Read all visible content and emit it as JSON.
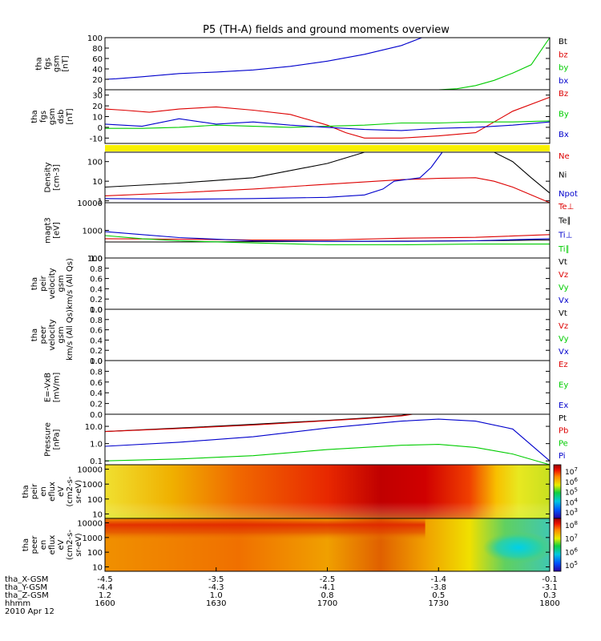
{
  "title": "P5 (TH-A) fields and ground moments overview",
  "chart_data": [
    {
      "type": "line",
      "ylabel_lines": [
        "tha",
        "fgs",
        "gsm",
        "[nT]"
      ],
      "ylim": [
        0,
        100
      ],
      "yticks": [
        0,
        20,
        40,
        60,
        80,
        100
      ],
      "legend": [
        {
          "name": "Bt",
          "color": "#000000"
        },
        {
          "name": "bz",
          "color": "#dd0000"
        },
        {
          "name": "by",
          "color": "#00cc00"
        },
        {
          "name": "bx",
          "color": "#0000cc"
        }
      ],
      "series": [
        {
          "name": "bx",
          "color": "#0000cc",
          "x": [
            1600,
            1603,
            1610,
            1620,
            1630,
            1640,
            1650,
            1700,
            1710,
            1720,
            1725.5
          ],
          "y": [
            20,
            21,
            25,
            31,
            34,
            38,
            45,
            55,
            68,
            85,
            100
          ]
        },
        {
          "name": "by",
          "color": "#00cc00",
          "x": [
            1600,
            1650,
            1730,
            1735,
            1740,
            1745,
            1750,
            1755,
            1800
          ],
          "y": [
            0,
            0,
            0,
            2,
            8,
            18,
            32,
            48,
            100
          ]
        }
      ]
    },
    {
      "type": "line",
      "ylabel_lines": [
        "tha",
        "fgs",
        "gsm",
        "dsb",
        "[nT]"
      ],
      "ylim": [
        -15,
        35
      ],
      "yticks": [
        -10,
        0,
        10,
        20,
        30
      ],
      "legend": [
        {
          "name": "Bz",
          "color": "#dd0000"
        },
        {
          "name": "By",
          "color": "#00cc00"
        },
        {
          "name": "Bx",
          "color": "#0000cc"
        }
      ],
      "series": [
        {
          "name": "Bz",
          "color": "#dd0000",
          "x": [
            1600,
            1605,
            1612,
            1620,
            1630,
            1640,
            1650,
            1700,
            1705,
            1710,
            1720,
            1730,
            1740,
            1745,
            1750,
            1800
          ],
          "y": [
            17,
            16,
            14,
            17,
            19,
            16,
            12,
            2,
            -5,
            -10,
            -10,
            -8,
            -5,
            5,
            15,
            28
          ]
        },
        {
          "name": "By",
          "color": "#00cc00",
          "x": [
            1600,
            1610,
            1620,
            1630,
            1640,
            1650,
            1700,
            1710,
            1720,
            1730,
            1740,
            1750,
            1800
          ],
          "y": [
            -1,
            -1,
            0,
            2,
            1,
            0,
            1,
            2,
            4,
            4,
            5,
            5,
            6
          ]
        },
        {
          "name": "Bx",
          "color": "#0000cc",
          "x": [
            1600,
            1610,
            1620,
            1630,
            1640,
            1650,
            1700,
            1710,
            1720,
            1730,
            1740,
            1750,
            1800
          ],
          "y": [
            3,
            1,
            8,
            3,
            5,
            2,
            0,
            -2,
            -3,
            -1,
            0,
            2,
            5
          ]
        }
      ]
    },
    {
      "type": "line",
      "scale": "log",
      "ylabel_lines": [
        "Density",
        "[cm-3]"
      ],
      "ylim": [
        0.8,
        300
      ],
      "yticks": [
        1,
        10,
        100
      ],
      "legend": [
        {
          "name": "Ne",
          "color": "#dd0000"
        },
        {
          "name": "Ni",
          "color": "#000000"
        },
        {
          "name": "Npot",
          "color": "#0000cc"
        }
      ],
      "series": [
        {
          "name": "Ni",
          "color": "#000000",
          "x": [
            1600,
            1620,
            1640,
            1700,
            1710,
            1745,
            1750,
            1755,
            1800
          ],
          "y": [
            5,
            8,
            15,
            80,
            300,
            300,
            100,
            15,
            2.5
          ]
        },
        {
          "name": "Ne",
          "color": "#dd0000",
          "x": [
            1600,
            1620,
            1640,
            1700,
            1720,
            1730,
            1740,
            1745,
            1750,
            1800
          ],
          "y": [
            1.8,
            2.6,
            4,
            7,
            12,
            14,
            15,
            10,
            5,
            0.8
          ]
        },
        {
          "name": "Npot",
          "color": "#0000cc",
          "x": [
            1600,
            1620,
            1640,
            1700,
            1710,
            1715,
            1718,
            1725,
            1728,
            1731
          ],
          "y": [
            1.3,
            1.2,
            1.3,
            1.5,
            2,
            4,
            10,
            15,
            50,
            300
          ]
        }
      ]
    },
    {
      "type": "line",
      "scale": "log",
      "ylabel_lines": [
        "magt3",
        "[eV]"
      ],
      "ylim": [
        100,
        10000
      ],
      "yticks": [
        100,
        1000,
        10000
      ],
      "legend": [
        {
          "name": "Te⊥",
          "color": "#dd0000"
        },
        {
          "name": "Te∥",
          "color": "#000000"
        },
        {
          "name": "Ti⊥",
          "color": "#0000cc"
        },
        {
          "name": "Ti∥",
          "color": "#00cc00"
        }
      ],
      "series": [
        {
          "name": "Te⊥",
          "color": "#dd0000",
          "x": [
            1600,
            1620,
            1640,
            1700,
            1720,
            1740,
            1800
          ],
          "y": [
            500,
            480,
            450,
            450,
            520,
            560,
            700
          ]
        },
        {
          "name": "Te∥",
          "color": "#000000",
          "x": [
            1600,
            1620,
            1640,
            1700,
            1720,
            1740,
            1800
          ],
          "y": [
            380,
            380,
            390,
            400,
            410,
            420,
            450
          ]
        },
        {
          "name": "Ti⊥",
          "color": "#0000cc",
          "x": [
            1600,
            1610,
            1620,
            1640,
            1700,
            1720,
            1740,
            1800
          ],
          "y": [
            900,
            700,
            550,
            420,
            400,
            400,
            420,
            500
          ]
        },
        {
          "name": "Ti∥",
          "color": "#00cc00",
          "x": [
            1600,
            1610,
            1620,
            1640,
            1700,
            1720,
            1740,
            1800
          ],
          "y": [
            650,
            500,
            420,
            350,
            300,
            300,
            320,
            320
          ]
        }
      ]
    },
    {
      "type": "line",
      "ylabel_lines": [
        "tha",
        "peir",
        "velocity",
        "gsm",
        "km/s (All Qs)"
      ],
      "ylim": [
        0,
        1
      ],
      "yticks": [
        0.0,
        0.2,
        0.4,
        0.6,
        0.8,
        1.0
      ],
      "legend": [
        {
          "name": "Vt",
          "color": "#000000"
        },
        {
          "name": "Vz",
          "color": "#dd0000"
        },
        {
          "name": "Vy",
          "color": "#00cc00"
        },
        {
          "name": "Vx",
          "color": "#0000cc"
        }
      ],
      "series": []
    },
    {
      "type": "line",
      "ylabel_lines": [
        "tha",
        "peer",
        "velocity",
        "gsm",
        "km/s (All Qs)"
      ],
      "ylim": [
        0,
        1
      ],
      "yticks": [
        0.0,
        0.2,
        0.4,
        0.6,
        0.8,
        1.0
      ],
      "legend": [
        {
          "name": "Vt",
          "color": "#000000"
        },
        {
          "name": "Vz",
          "color": "#dd0000"
        },
        {
          "name": "Vy",
          "color": "#00cc00"
        },
        {
          "name": "Vx",
          "color": "#0000cc"
        }
      ],
      "series": []
    },
    {
      "type": "line",
      "ylabel_lines": [
        "E=-VxB",
        "[mV/m]"
      ],
      "ylim": [
        0,
        1
      ],
      "yticks": [
        0.0,
        0.2,
        0.4,
        0.6,
        0.8,
        1.0
      ],
      "legend": [
        {
          "name": "Ez",
          "color": "#dd0000"
        },
        {
          "name": "Ey",
          "color": "#00cc00"
        },
        {
          "name": "Ex",
          "color": "#0000cc"
        }
      ],
      "series": []
    },
    {
      "type": "line",
      "scale": "log",
      "ylabel_lines": [
        "Pressure",
        "[nPa]"
      ],
      "ylim": [
        0.06,
        50
      ],
      "yticks": [
        0.1,
        1.0,
        10.0
      ],
      "legend": [
        {
          "name": "Pt",
          "color": "#000000"
        },
        {
          "name": "Pb",
          "color": "#dd0000"
        },
        {
          "name": "Pe",
          "color": "#00cc00"
        },
        {
          "name": "Pi",
          "color": "#0000cc"
        }
      ],
      "series": [
        {
          "name": "Pt",
          "color": "#000000",
          "x": [
            1600,
            1620,
            1640,
            1700,
            1710,
            1720,
            1722
          ],
          "y": [
            5,
            8,
            13,
            22,
            30,
            42,
            50
          ]
        },
        {
          "name": "Pb",
          "color": "#dd0000",
          "x": [
            1600,
            1620,
            1640,
            1700,
            1710,
            1720,
            1723
          ],
          "y": [
            5,
            7.5,
            12,
            21,
            28,
            40,
            50
          ]
        },
        {
          "name": "Pi",
          "color": "#0000cc",
          "x": [
            1600,
            1620,
            1640,
            1700,
            1720,
            1730,
            1740,
            1750,
            1800
          ],
          "y": [
            0.7,
            1.2,
            2.5,
            8,
            20,
            26,
            20,
            7,
            0.1
          ]
        },
        {
          "name": "Pe",
          "color": "#00cc00",
          "x": [
            1600,
            1620,
            1640,
            1700,
            1720,
            1730,
            1740,
            1750,
            1800
          ],
          "y": [
            0.1,
            0.13,
            0.2,
            0.45,
            0.8,
            0.9,
            0.6,
            0.25,
            0.06
          ]
        }
      ]
    },
    {
      "type": "heatmap",
      "ylabel_lines": [
        "tha",
        "peir",
        "en",
        "eflux",
        "eV",
        "(cm2-s-",
        "sr-eV)"
      ],
      "ylim": [
        5,
        20000
      ],
      "yticks": [
        10,
        100,
        1000,
        10000
      ],
      "colorbar_labels": [
        "10^7",
        "10^6",
        "10^5",
        "10^4",
        "10^3"
      ]
    },
    {
      "type": "heatmap",
      "ylabel_lines": [
        "tha",
        "peer",
        "en",
        "eflux",
        "eV",
        "(cm2-s-",
        "sr-eV)"
      ],
      "ylim": [
        5,
        20000
      ],
      "yticks": [
        10,
        100,
        1000,
        10000
      ],
      "colorbar_labels": [
        "10^8",
        "10^7",
        "10^6",
        "10^5"
      ]
    }
  ],
  "xaxis": {
    "rows": [
      {
        "label": "tha_X-GSM",
        "values": [
          "-4.5",
          "-3.5",
          "-2.5",
          "-1.4",
          "-0.1"
        ]
      },
      {
        "label": "tha_Y-GSM",
        "values": [
          "-4.4",
          "-4.3",
          "-4.1",
          "-3.8",
          "-3.1"
        ]
      },
      {
        "label": "tha_Z-GSM",
        "values": [
          "1.2",
          "1.0",
          "0.8",
          "0.5",
          "0.3"
        ]
      },
      {
        "label": "hhmm",
        "values": [
          "1600",
          "1630",
          "1700",
          "1730",
          "1800"
        ]
      }
    ],
    "date": "2010 Apr 12"
  }
}
